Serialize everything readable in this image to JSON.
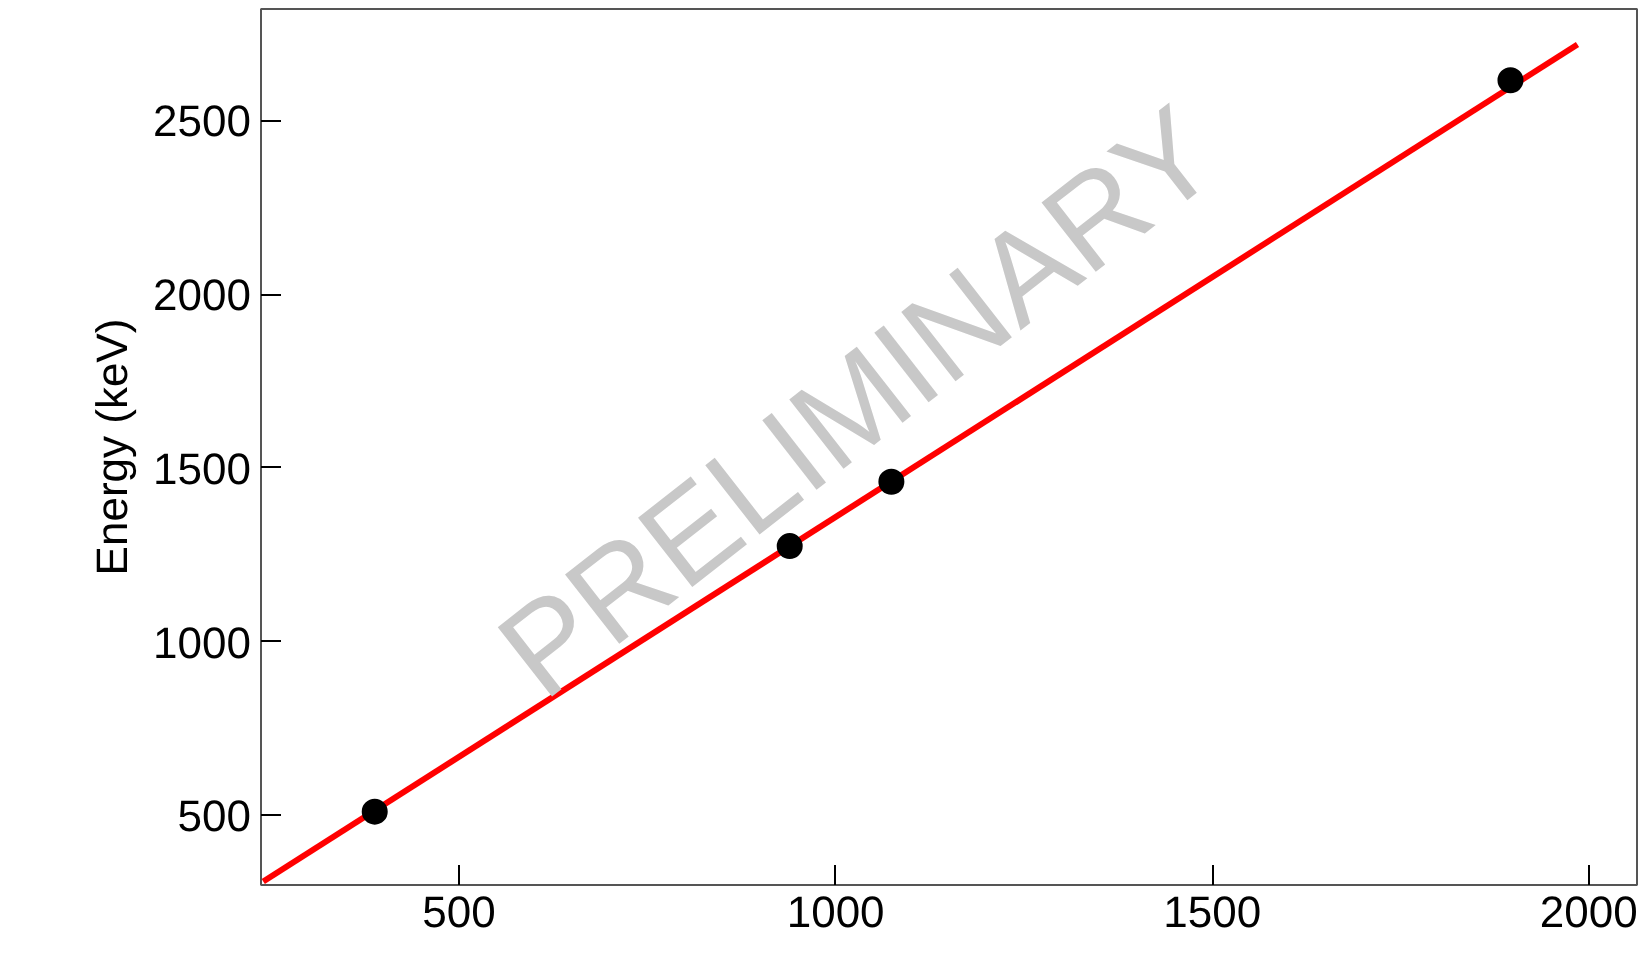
{
  "chart_data": {
    "type": "scatter",
    "ylabel": "Energy (keV)",
    "xlim": [
      237,
      2064
    ],
    "ylim": [
      300,
      2820
    ],
    "xticks": [
      500,
      1000,
      1500,
      2000
    ],
    "yticks": [
      500,
      1000,
      1500,
      2000,
      2500
    ],
    "series": [
      {
        "marker": "circle",
        "color": "#000000",
        "x": [
          388,
          939,
          1074,
          1896
        ],
        "values": [
          511,
          1275,
          1460,
          2615
        ]
      },
      {
        "type": "line",
        "color": "#ff0000",
        "x": [
          240,
          1985
        ],
        "values": [
          310,
          2718
        ]
      }
    ],
    "annotations": [
      "PRELIMINARY"
    ]
  }
}
